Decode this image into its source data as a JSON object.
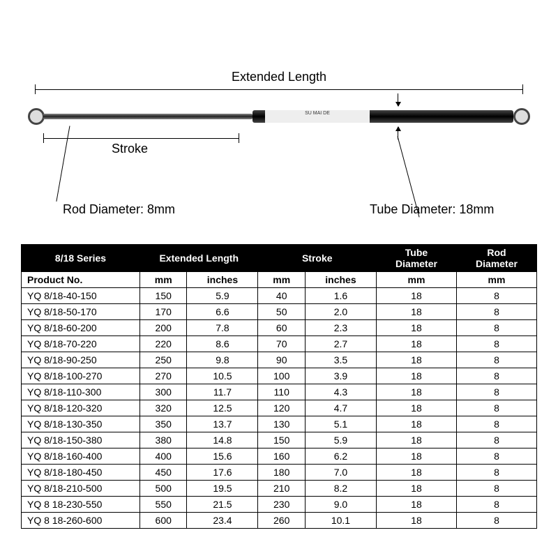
{
  "diagram": {
    "extended_length_label": "Extended Length",
    "stroke_label": "Stroke",
    "rod_diameter_label": "Rod Diameter: 8mm",
    "tube_diameter_label": "Tube Diameter: 18mm",
    "tube_band_text": "SU MAI DE"
  },
  "table": {
    "series_header": "8/18 Series",
    "extended_length_header": "Extended Length",
    "stroke_header": "Stroke",
    "tube_diameter_header": "Tube\nDiameter",
    "rod_diameter_header": "Rod\nDiameter",
    "product_no_header": "Product No.",
    "unit_mm": "mm",
    "unit_inches": "inches",
    "rows": [
      {
        "pn": "YQ 8/18-40-150",
        "ext_mm": "150",
        "ext_in": "5.9",
        "stroke_mm": "40",
        "stroke_in": "1.6",
        "tube": "18",
        "rod": "8"
      },
      {
        "pn": "YQ 8/18-50-170",
        "ext_mm": "170",
        "ext_in": "6.6",
        "stroke_mm": "50",
        "stroke_in": "2.0",
        "tube": "18",
        "rod": "8"
      },
      {
        "pn": "YQ 8/18-60-200",
        "ext_mm": "200",
        "ext_in": "7.8",
        "stroke_mm": "60",
        "stroke_in": "2.3",
        "tube": "18",
        "rod": "8"
      },
      {
        "pn": "YQ 8/18-70-220",
        "ext_mm": "220",
        "ext_in": "8.6",
        "stroke_mm": "70",
        "stroke_in": "2.7",
        "tube": "18",
        "rod": "8"
      },
      {
        "pn": "YQ 8/18-90-250",
        "ext_mm": "250",
        "ext_in": "9.8",
        "stroke_mm": "90",
        "stroke_in": "3.5",
        "tube": "18",
        "rod": "8"
      },
      {
        "pn": "YQ 8/18-100-270",
        "ext_mm": "270",
        "ext_in": "10.5",
        "stroke_mm": "100",
        "stroke_in": "3.9",
        "tube": "18",
        "rod": "8"
      },
      {
        "pn": "YQ 8/18-110-300",
        "ext_mm": "300",
        "ext_in": "11.7",
        "stroke_mm": "110",
        "stroke_in": "4.3",
        "tube": "18",
        "rod": "8"
      },
      {
        "pn": "YQ 8/18-120-320",
        "ext_mm": "320",
        "ext_in": "12.5",
        "stroke_mm": "120",
        "stroke_in": "4.7",
        "tube": "18",
        "rod": "8"
      },
      {
        "pn": "YQ 8/18-130-350",
        "ext_mm": "350",
        "ext_in": "13.7",
        "stroke_mm": "130",
        "stroke_in": "5.1",
        "tube": "18",
        "rod": "8"
      },
      {
        "pn": "YQ 8/18-150-380",
        "ext_mm": "380",
        "ext_in": "14.8",
        "stroke_mm": "150",
        "stroke_in": "5.9",
        "tube": "18",
        "rod": "8"
      },
      {
        "pn": "YQ 8/18-160-400",
        "ext_mm": "400",
        "ext_in": "15.6",
        "stroke_mm": "160",
        "stroke_in": "6.2",
        "tube": "18",
        "rod": "8"
      },
      {
        "pn": "YQ 8/18-180-450",
        "ext_mm": "450",
        "ext_in": "17.6",
        "stroke_mm": "180",
        "stroke_in": "7.0",
        "tube": "18",
        "rod": "8"
      },
      {
        "pn": "YQ 8/18-210-500",
        "ext_mm": "500",
        "ext_in": "19.5",
        "stroke_mm": "210",
        "stroke_in": "8.2",
        "tube": "18",
        "rod": "8"
      },
      {
        "pn": "YQ 8 18-230-550",
        "ext_mm": "550",
        "ext_in": "21.5",
        "stroke_mm": "230",
        "stroke_in": "9.0",
        "tube": "18",
        "rod": "8"
      },
      {
        "pn": "YQ 8 18-260-600",
        "ext_mm": "600",
        "ext_in": "23.4",
        "stroke_mm": "260",
        "stroke_in": "10.1",
        "tube": "18",
        "rod": "8"
      }
    ]
  }
}
